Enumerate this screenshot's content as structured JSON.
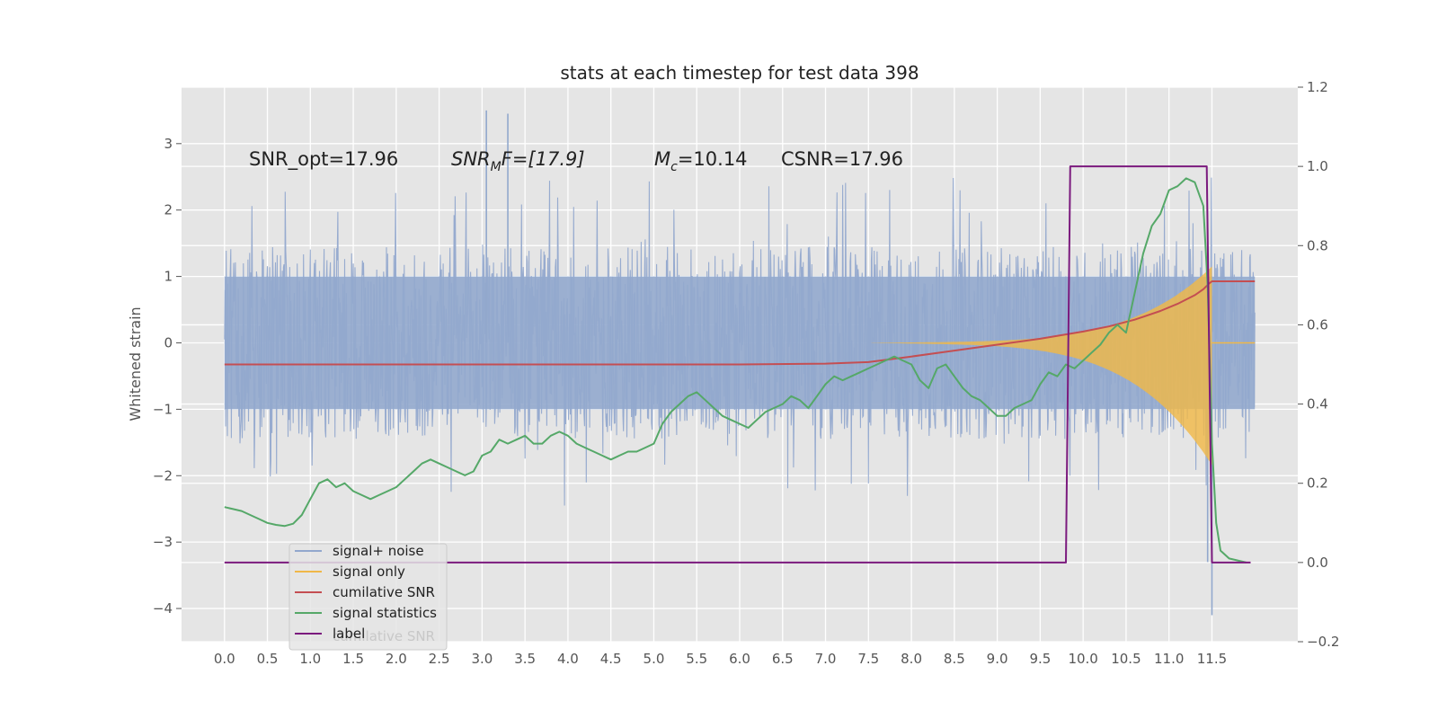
{
  "chart_data": {
    "type": "line",
    "title": "stats at each timestep for test data 398",
    "ylabel": "Whitened strain",
    "ylabel_right": "",
    "xlabel": "",
    "xlim": [
      -0.5,
      12.5
    ],
    "ylim": [
      -4.5,
      3.85
    ],
    "ylim_right": [
      -0.2,
      1.2
    ],
    "x_ticks": [
      "0.0",
      "0.5",
      "1.0",
      "1.5",
      "2.0",
      "2.5",
      "3.0",
      "3.5",
      "4.0",
      "4.5",
      "5.0",
      "5.5",
      "6.0",
      "6.5",
      "7.0",
      "7.5",
      "8.0",
      "8.5",
      "9.0",
      "9.5",
      "10.0",
      "10.5",
      "11.0",
      "11.5"
    ],
    "y_ticks": [
      "3",
      "2",
      "1",
      "0",
      "−1",
      "−2",
      "−3",
      "−4"
    ],
    "y_right_ticks": [
      "1.2",
      "1.0",
      "0.8",
      "0.6",
      "0.4",
      "0.2",
      "0.0",
      "−0.2"
    ],
    "grid": true,
    "annotations": {
      "snr_opt": "SNR_opt=17.96",
      "snr_mf_main": "SNR",
      "snr_mf_sub": "M",
      "snr_mf_rest": "F=[17.9]",
      "mc_main": "M",
      "mc_sub": "c",
      "mc_rest": "=10.14",
      "csnr": "CSNR=17.96"
    },
    "legend": {
      "placement": "lower-left",
      "entries": [
        "signal+ noise",
        "signal only",
        "cumilative SNR",
        "signal statistics",
        "label"
      ],
      "ghost_text": "cumilative SNR"
    },
    "series": [
      {
        "name": "signal+ noise",
        "color": "#92a8cd",
        "axis": "left",
        "kind": "noise",
        "x_range": [
          0,
          12.0
        ],
        "envelope": 1.45,
        "extremes_x": [
          3.05,
          3.3,
          11.5,
          11.45,
          6.0
        ],
        "extremes_y": [
          3.5,
          3.45,
          -4.1,
          -3.3,
          0.75
        ]
      },
      {
        "name": "signal only",
        "color": "#f0b848",
        "axis": "left",
        "kind": "chirp",
        "x_range": [
          7.5,
          11.5
        ],
        "peak": 1.1
      },
      {
        "name": "cumilative SNR",
        "color": "#c44e52",
        "axis": "right",
        "x": [
          0,
          6,
          7,
          7.5,
          8,
          8.5,
          9,
          9.5,
          10,
          10.3,
          10.6,
          10.9,
          11.1,
          11.3,
          11.4,
          11.47,
          11.5,
          12.0
        ],
        "y": [
          0.5,
          0.5,
          0.502,
          0.506,
          0.52,
          0.535,
          0.55,
          0.565,
          0.583,
          0.596,
          0.613,
          0.635,
          0.653,
          0.675,
          0.69,
          0.705,
          0.71,
          0.71
        ]
      },
      {
        "name": "signal statistics",
        "color": "#55a868",
        "axis": "right",
        "x": [
          0,
          0.1,
          0.2,
          0.3,
          0.4,
          0.5,
          0.6,
          0.7,
          0.8,
          0.9,
          1.0,
          1.1,
          1.2,
          1.3,
          1.4,
          1.5,
          1.6,
          1.7,
          1.8,
          1.9,
          2.0,
          2.1,
          2.2,
          2.3,
          2.4,
          2.5,
          2.6,
          2.7,
          2.8,
          2.9,
          3.0,
          3.1,
          3.2,
          3.3,
          3.4,
          3.5,
          3.6,
          3.7,
          3.8,
          3.9,
          4.0,
          4.1,
          4.2,
          4.3,
          4.4,
          4.5,
          4.6,
          4.7,
          4.8,
          4.9,
          5.0,
          5.1,
          5.2,
          5.3,
          5.4,
          5.5,
          5.6,
          5.7,
          5.8,
          5.9,
          6.0,
          6.1,
          6.2,
          6.3,
          6.4,
          6.5,
          6.6,
          6.7,
          6.8,
          6.9,
          7.0,
          7.1,
          7.2,
          7.3,
          7.4,
          7.5,
          7.6,
          7.7,
          7.8,
          7.9,
          8.0,
          8.1,
          8.2,
          8.3,
          8.4,
          8.5,
          8.6,
          8.7,
          8.8,
          8.9,
          9.0,
          9.1,
          9.2,
          9.3,
          9.4,
          9.5,
          9.6,
          9.7,
          9.8,
          9.9,
          10.0,
          10.1,
          10.2,
          10.3,
          10.4,
          10.5,
          10.6,
          10.7,
          10.8,
          10.9,
          11.0,
          11.1,
          11.2,
          11.3,
          11.4,
          11.45,
          11.5,
          11.55,
          11.6,
          11.7,
          11.9
        ],
        "y": [
          0.14,
          0.135,
          0.13,
          0.12,
          0.11,
          0.1,
          0.095,
          0.092,
          0.098,
          0.12,
          0.16,
          0.2,
          0.21,
          0.19,
          0.2,
          0.18,
          0.17,
          0.16,
          0.17,
          0.18,
          0.19,
          0.21,
          0.23,
          0.25,
          0.26,
          0.25,
          0.24,
          0.23,
          0.22,
          0.23,
          0.27,
          0.28,
          0.31,
          0.3,
          0.31,
          0.32,
          0.3,
          0.3,
          0.32,
          0.33,
          0.32,
          0.3,
          0.29,
          0.28,
          0.27,
          0.26,
          0.27,
          0.28,
          0.28,
          0.29,
          0.3,
          0.35,
          0.38,
          0.4,
          0.42,
          0.43,
          0.41,
          0.39,
          0.37,
          0.36,
          0.35,
          0.34,
          0.36,
          0.38,
          0.39,
          0.4,
          0.42,
          0.41,
          0.39,
          0.42,
          0.45,
          0.47,
          0.46,
          0.47,
          0.48,
          0.49,
          0.5,
          0.51,
          0.52,
          0.51,
          0.5,
          0.46,
          0.44,
          0.49,
          0.5,
          0.47,
          0.44,
          0.42,
          0.41,
          0.39,
          0.37,
          0.37,
          0.39,
          0.4,
          0.41,
          0.45,
          0.48,
          0.47,
          0.5,
          0.49,
          0.51,
          0.53,
          0.55,
          0.58,
          0.6,
          0.58,
          0.68,
          0.78,
          0.85,
          0.88,
          0.94,
          0.95,
          0.97,
          0.96,
          0.9,
          0.7,
          0.3,
          0.1,
          0.03,
          0.01,
          0.0
        ]
      },
      {
        "name": "label",
        "color": "#7b1a7e",
        "axis": "right",
        "x": [
          0,
          9.8,
          9.85,
          11.44,
          11.5,
          11.95
        ],
        "y": [
          0,
          0,
          1,
          1,
          0,
          0
        ]
      }
    ]
  }
}
